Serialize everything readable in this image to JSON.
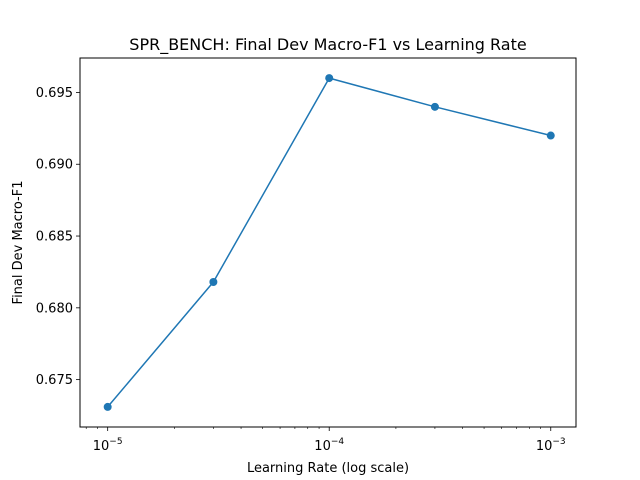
{
  "chart_data": {
    "type": "line",
    "title": "SPR_BENCH: Final Dev Macro-F1 vs Learning Rate",
    "xlabel": "Learning Rate (log scale)",
    "ylabel": "Final Dev Macro-F1",
    "x_scale": "log",
    "xlim": [
      7.5e-06,
      0.0013
    ],
    "ylim": [
      0.6717,
      0.6974
    ],
    "x_ticks": [
      {
        "value": 1e-05,
        "base": "10",
        "exp": "−5"
      },
      {
        "value": 0.0001,
        "base": "10",
        "exp": "−4"
      },
      {
        "value": 0.001,
        "base": "10",
        "exp": "−3"
      }
    ],
    "y_ticks": [
      {
        "value": 0.675,
        "label": "0.675"
      },
      {
        "value": 0.68,
        "label": "0.680"
      },
      {
        "value": 0.685,
        "label": "0.685"
      },
      {
        "value": 0.69,
        "label": "0.690"
      },
      {
        "value": 0.695,
        "label": "0.695"
      }
    ],
    "grid": false,
    "series": [
      {
        "color": "#1f77b4",
        "marker": "circle",
        "x": [
          1e-05,
          3e-05,
          0.0001,
          0.0003,
          0.001
        ],
        "y": [
          0.6731,
          0.6818,
          0.696,
          0.694,
          0.692
        ]
      }
    ]
  }
}
